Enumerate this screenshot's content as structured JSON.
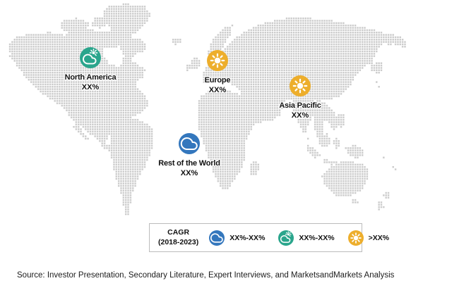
{
  "map": {
    "dot_color": "#cccccc",
    "regions": [
      {
        "name": "North America",
        "value": "XX%",
        "icon": "partly-cloudy-icon",
        "color": "#2aa58c"
      },
      {
        "name": "Europe",
        "value": "XX%",
        "icon": "sun-icon",
        "color": "#edae2c"
      },
      {
        "name": "Asia Pacific",
        "value": "XX%",
        "icon": "sun-icon",
        "color": "#edae2c"
      },
      {
        "name": "Rest of the World",
        "value": "XX%",
        "icon": "cloud-icon",
        "color": "#3477bd"
      }
    ]
  },
  "legend": {
    "title_line1": "CAGR",
    "title_line2": "(2018-2023)",
    "items": [
      {
        "label": "XX%-XX%",
        "icon": "cloud-icon",
        "color": "#3477bd"
      },
      {
        "label": "XX%-XX%",
        "icon": "partly-cloudy-icon",
        "color": "#2aa58c"
      },
      {
        "label": ">XX%",
        "icon": "sun-icon",
        "color": "#edae2c"
      }
    ]
  },
  "source": "Source: Investor Presentation, Secondary Literature, Expert Interviews, and MarketsandMarkets Analysis"
}
